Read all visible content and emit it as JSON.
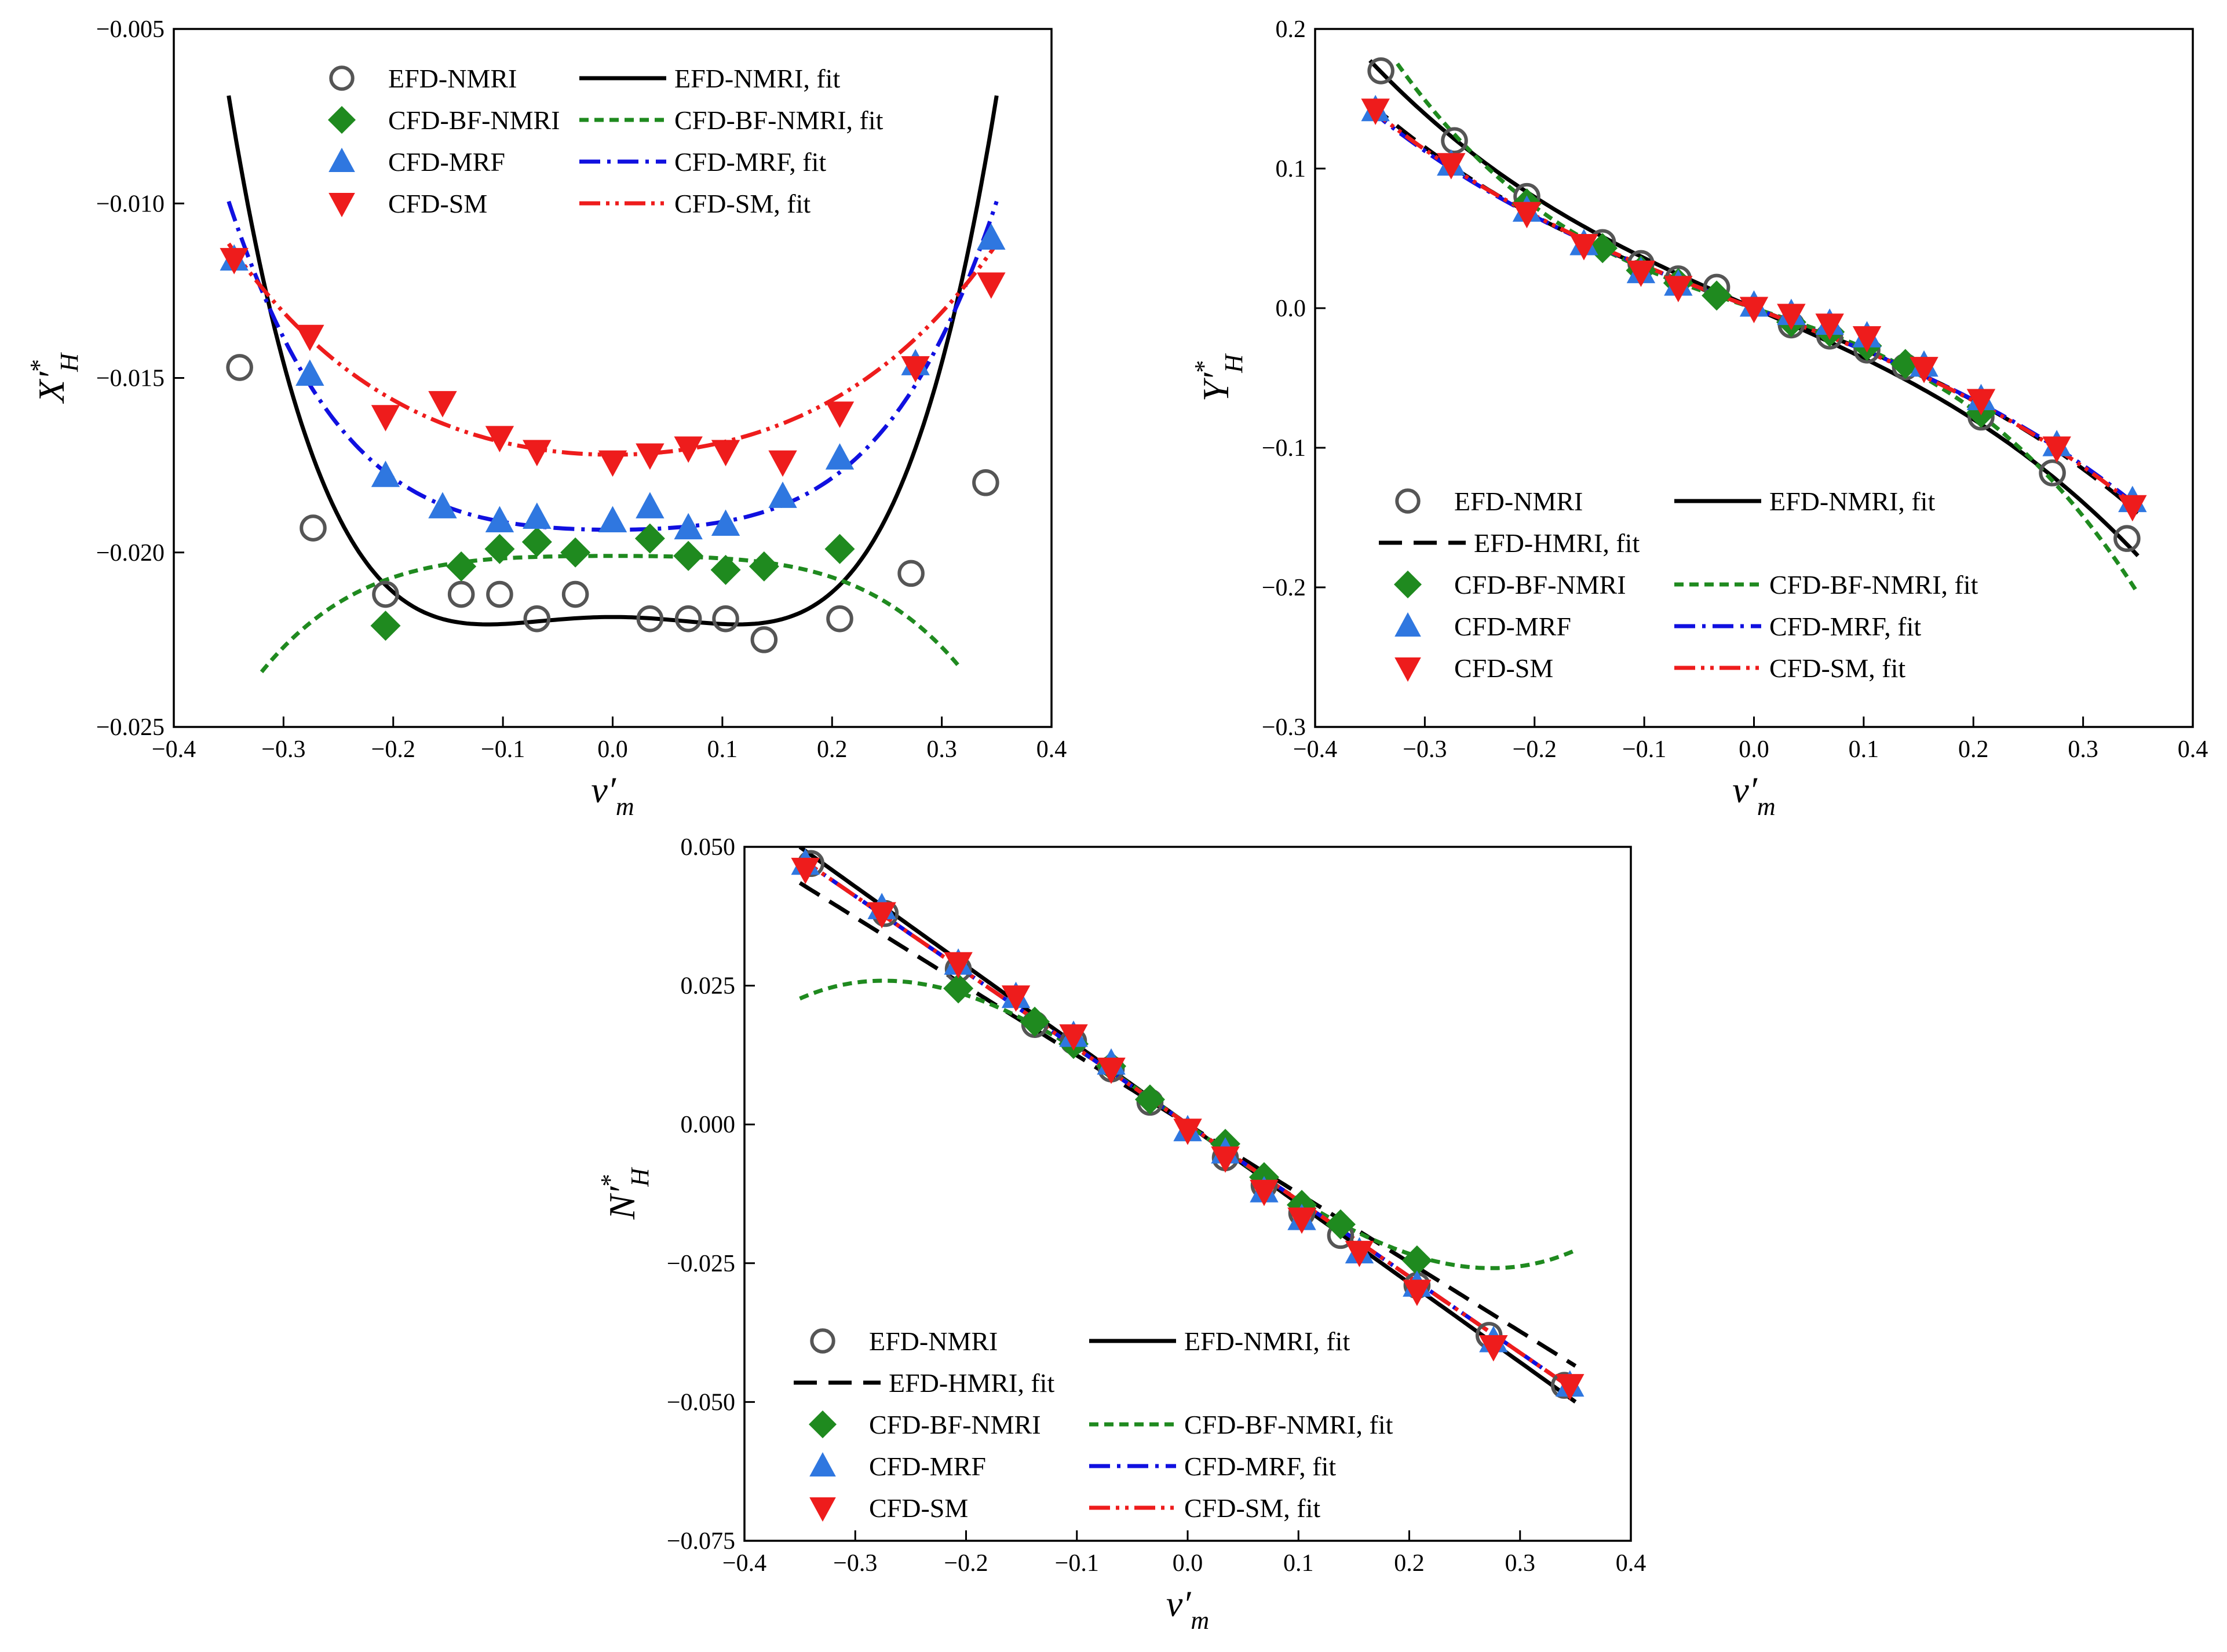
{
  "chart_data": [
    {
      "type": "scatter",
      "ylabel": {
        "main": "X′",
        "sup": "*",
        "sub": "H"
      },
      "xlabel": {
        "main": "v′",
        "sub": "m"
      },
      "xlim": [
        -0.4,
        0.4
      ],
      "ylim": [
        -0.025,
        -0.005
      ],
      "xticks": [
        -0.4,
        -0.3,
        -0.2,
        -0.1,
        0.0,
        0.1,
        0.2,
        0.3,
        0.4
      ],
      "xtick_labels": [
        "−0.4",
        "−0.3",
        "−0.2",
        "−0.1",
        "0.0",
        "0.1",
        "0.2",
        "0.3",
        "0.4"
      ],
      "yticks": [
        -0.025,
        -0.02,
        -0.015,
        -0.01,
        -0.005
      ],
      "ytick_labels": [
        "−0.025",
        "−0.020",
        "−0.015",
        "−0.010",
        "−0.005"
      ],
      "legend_position": "top-center",
      "legend_columns": 2,
      "legend": [
        {
          "label": "EFD-NMRI",
          "kind": "marker",
          "series": "efd"
        },
        {
          "label": "EFD-NMRI, fit",
          "kind": "line",
          "fit": "efd"
        },
        {
          "label": "CFD-BF-NMRI",
          "kind": "marker",
          "series": "bf"
        },
        {
          "label": "CFD-BF-NMRI, fit",
          "kind": "line",
          "fit": "bf"
        },
        {
          "label": "CFD-MRF",
          "kind": "marker",
          "series": "mrf"
        },
        {
          "label": "CFD-MRF, fit",
          "kind": "line",
          "fit": "mrf"
        },
        {
          "label": "CFD-SM",
          "kind": "marker",
          "series": "sm"
        },
        {
          "label": "CFD-SM, fit",
          "kind": "line",
          "fit": "sm"
        }
      ],
      "series": [
        {
          "key": "efd",
          "marker": "circle",
          "color": "#555555",
          "x": [
            -0.34,
            -0.273,
            -0.207,
            -0.138,
            -0.103,
            -0.069,
            -0.034,
            0.034,
            0.069,
            0.103,
            0.138,
            0.207,
            0.272,
            0.34
          ],
          "y": [
            -0.0147,
            -0.0193,
            -0.0212,
            -0.0212,
            -0.0212,
            -0.0219,
            -0.0212,
            -0.0219,
            -0.0219,
            -0.0219,
            -0.0225,
            -0.0219,
            -0.0206,
            -0.018
          ]
        },
        {
          "key": "bf",
          "marker": "diamond",
          "color": "#1f8a1f",
          "x": [
            -0.207,
            -0.138,
            -0.103,
            -0.069,
            -0.034,
            0.034,
            0.069,
            0.103,
            0.138,
            0.207
          ],
          "y": [
            -0.0221,
            -0.0204,
            -0.0199,
            -0.0197,
            -0.02,
            -0.0196,
            -0.0201,
            -0.0205,
            -0.0204,
            -0.0199
          ]
        },
        {
          "key": "mrf",
          "marker": "triangle-up",
          "color": "#2f77e0",
          "x": [
            -0.345,
            -0.276,
            -0.207,
            -0.155,
            -0.103,
            -0.069,
            0.0,
            0.034,
            0.069,
            0.103,
            0.155,
            0.207,
            0.276,
            0.345
          ],
          "y": [
            -0.0116,
            -0.0149,
            -0.0178,
            -0.0187,
            -0.0191,
            -0.019,
            -0.0191,
            -0.0187,
            -0.0193,
            -0.0192,
            -0.0184,
            -0.0173,
            -0.0146,
            -0.011
          ]
        },
        {
          "key": "sm",
          "marker": "triangle-down",
          "color": "#ee1c1c",
          "x": [
            -0.345,
            -0.276,
            -0.207,
            -0.155,
            -0.103,
            -0.069,
            0.0,
            0.034,
            0.069,
            0.103,
            0.155,
            0.207,
            0.276,
            0.345
          ],
          "y": [
            -0.0116,
            -0.0138,
            -0.0161,
            -0.0157,
            -0.0167,
            -0.0171,
            -0.0174,
            -0.0172,
            -0.017,
            -0.0171,
            -0.0174,
            -0.016,
            -0.0147,
            -0.0123
          ]
        }
      ],
      "fits": [
        {
          "key": "efd",
          "style": "solid",
          "color": "#000000",
          "x_range": [
            -0.35,
            0.35
          ],
          "coefs": [
            -0.02185,
            0.0,
            -0.0327,
            0.0,
            1.2625
          ]
        },
        {
          "key": "bf",
          "style": "dash",
          "color": "#1f8a1f",
          "x_range": [
            -0.32,
            0.315
          ],
          "coefs": [
            -0.0201,
            0.0,
            -0.0043,
            0.0,
            -0.275
          ]
        },
        {
          "key": "mrf",
          "style": "dashdot",
          "color": "#1010e0",
          "x_range": [
            -0.35,
            0.35
          ],
          "coefs": [
            -0.01935,
            0.0,
            0.0178,
            0.0,
            0.4817
          ]
        },
        {
          "key": "sm",
          "style": "dashdotdot",
          "color": "#ee1c1c",
          "x_range": [
            -0.35,
            0.35
          ],
          "coefs": [
            -0.0172,
            0.0,
            0.0343,
            0.0,
            0.1229
          ]
        }
      ]
    },
    {
      "type": "scatter",
      "ylabel": {
        "main": "Y′",
        "sup": "*",
        "sub": "H"
      },
      "xlabel": {
        "main": "v′",
        "sub": "m"
      },
      "xlim": [
        -0.4,
        0.4
      ],
      "ylim": [
        -0.3,
        0.2
      ],
      "xticks": [
        -0.4,
        -0.3,
        -0.2,
        -0.1,
        0.0,
        0.1,
        0.2,
        0.3,
        0.4
      ],
      "xtick_labels": [
        "−0.4",
        "−0.3",
        "−0.2",
        "−0.1",
        "0.0",
        "0.1",
        "0.2",
        "0.3",
        "0.4"
      ],
      "yticks": [
        -0.3,
        -0.2,
        -0.1,
        0.0,
        0.1,
        0.2
      ],
      "ytick_labels": [
        "−0.3",
        "−0.2",
        "−0.1",
        "0.0",
        "0.1",
        "0.2"
      ],
      "legend_position": "bottom-left",
      "legend_columns": 2,
      "legend": [
        {
          "label": "EFD-NMRI",
          "kind": "marker",
          "series": "efd"
        },
        {
          "label": "EFD-NMRI, fit",
          "kind": "line",
          "fit": "efd"
        },
        {
          "label": "EFD-HMRI, fit",
          "kind": "line",
          "fit": "hmri"
        },
        {
          "label": "CFD-BF-NMRI",
          "kind": "marker",
          "series": "bf"
        },
        {
          "label": "CFD-BF-NMRI, fit",
          "kind": "line",
          "fit": "bf"
        },
        {
          "label": "CFD-MRF",
          "kind": "marker",
          "series": "mrf"
        },
        {
          "label": "CFD-MRF, fit",
          "kind": "line",
          "fit": "mrf"
        },
        {
          "label": "CFD-SM",
          "kind": "marker",
          "series": "sm"
        },
        {
          "label": "CFD-SM, fit",
          "kind": "line",
          "fit": "sm"
        }
      ],
      "series": [
        {
          "key": "efd",
          "marker": "circle",
          "color": "#555555",
          "x": [
            -0.34,
            -0.273,
            -0.207,
            -0.138,
            -0.103,
            -0.069,
            -0.034,
            0.034,
            0.069,
            0.103,
            0.138,
            0.207,
            0.272,
            0.34
          ],
          "y": [
            0.17,
            0.12,
            0.08,
            0.047,
            0.032,
            0.021,
            0.015,
            -0.012,
            -0.02,
            -0.03,
            -0.042,
            -0.078,
            -0.118,
            -0.165
          ]
        },
        {
          "key": "bf",
          "marker": "diamond",
          "color": "#1f8a1f",
          "x": [
            -0.207,
            -0.138,
            -0.103,
            -0.069,
            -0.034,
            0.034,
            0.069,
            0.103,
            0.138,
            0.207
          ],
          "y": [
            0.075,
            0.043,
            0.027,
            0.018,
            0.009,
            -0.01,
            -0.017,
            -0.027,
            -0.04,
            -0.075
          ]
        },
        {
          "key": "mrf",
          "marker": "triangle-up",
          "color": "#2f77e0",
          "x": [
            -0.345,
            -0.276,
            -0.207,
            -0.155,
            -0.103,
            -0.069,
            0.0,
            0.034,
            0.069,
            0.103,
            0.155,
            0.207,
            0.276,
            0.345
          ],
          "y": [
            0.142,
            0.103,
            0.07,
            0.046,
            0.026,
            0.017,
            0.002,
            -0.004,
            -0.011,
            -0.02,
            -0.041,
            -0.065,
            -0.098,
            -0.138
          ]
        },
        {
          "key": "sm",
          "marker": "triangle-down",
          "color": "#ee1c1c",
          "x": [
            -0.345,
            -0.276,
            -0.207,
            -0.155,
            -0.103,
            -0.069,
            0.0,
            0.034,
            0.069,
            0.103,
            0.155,
            0.207,
            0.276,
            0.345
          ],
          "y": [
            0.142,
            0.103,
            0.068,
            0.045,
            0.026,
            0.015,
            0.0,
            -0.005,
            -0.012,
            -0.021,
            -0.043,
            -0.066,
            -0.1,
            -0.142
          ]
        }
      ],
      "fits": [
        {
          "key": "efd",
          "style": "solid",
          "color": "#000000",
          "x_range": [
            -0.35,
            0.35
          ],
          "coefs": [
            0.0,
            -0.3457,
            0.0,
            -1.3153
          ]
        },
        {
          "key": "hmri",
          "style": "longdash",
          "color": "#000000",
          "x_range": [
            -0.35,
            0.35
          ],
          "coefs": [
            0.0,
            -0.2872,
            0.0,
            -1.078
          ]
        },
        {
          "key": "bf",
          "style": "dash",
          "color": "#1f8a1f",
          "x_range": [
            -0.325,
            0.35
          ],
          "coefs": [
            0.0,
            -0.2566,
            0.0,
            -2.672
          ]
        },
        {
          "key": "mrf",
          "style": "dashdot",
          "color": "#1010e0",
          "x_range": [
            -0.35,
            0.35
          ],
          "coefs": [
            0.0,
            -0.2911,
            0.0,
            -0.9364
          ]
        },
        {
          "key": "sm",
          "style": "dashdotdot",
          "color": "#ee1c1c",
          "x_range": [
            -0.35,
            0.35
          ],
          "coefs": [
            0.0,
            -0.2942,
            0.0,
            -0.9397
          ]
        }
      ]
    },
    {
      "type": "scatter",
      "ylabel": {
        "main": "N′",
        "sup": "*",
        "sub": "H"
      },
      "xlabel": {
        "main": "v′",
        "sub": "m"
      },
      "xlim": [
        -0.4,
        0.4
      ],
      "ylim": [
        -0.075,
        0.05
      ],
      "xticks": [
        -0.4,
        -0.3,
        -0.2,
        -0.1,
        0.0,
        0.1,
        0.2,
        0.3,
        0.4
      ],
      "xtick_labels": [
        "−0.4",
        "−0.3",
        "−0.2",
        "−0.1",
        "0.0",
        "0.1",
        "0.2",
        "0.3",
        "0.4"
      ],
      "yticks": [
        -0.075,
        -0.05,
        -0.025,
        0.0,
        0.025,
        0.05
      ],
      "ytick_labels": [
        "−0.075",
        "−0.050",
        "−0.025",
        "0.000",
        "0.025",
        "0.050"
      ],
      "legend_position": "bottom-left",
      "legend_columns": 2,
      "legend": [
        {
          "label": "EFD-NMRI",
          "kind": "marker",
          "series": "efd"
        },
        {
          "label": "EFD-NMRI, fit",
          "kind": "line",
          "fit": "efd"
        },
        {
          "label": "EFD-HMRI, fit",
          "kind": "line",
          "fit": "hmri"
        },
        {
          "label": "CFD-BF-NMRI",
          "kind": "marker",
          "series": "bf"
        },
        {
          "label": "CFD-BF-NMRI, fit",
          "kind": "line",
          "fit": "bf"
        },
        {
          "label": "CFD-MRF",
          "kind": "marker",
          "series": "mrf"
        },
        {
          "label": "CFD-MRF, fit",
          "kind": "line",
          "fit": "mrf"
        },
        {
          "label": "CFD-SM",
          "kind": "marker",
          "series": "sm"
        },
        {
          "label": "CFD-SM, fit",
          "kind": "line",
          "fit": "sm"
        }
      ],
      "series": [
        {
          "key": "efd",
          "marker": "circle",
          "color": "#555555",
          "x": [
            -0.34,
            -0.273,
            -0.207,
            -0.138,
            -0.103,
            -0.069,
            -0.034,
            0.034,
            0.069,
            0.103,
            0.138,
            0.207,
            0.272,
            0.34
          ],
          "y": [
            0.047,
            0.038,
            0.028,
            0.018,
            0.015,
            0.01,
            0.004,
            -0.006,
            -0.011,
            -0.016,
            -0.02,
            -0.029,
            -0.038,
            -0.047
          ]
        },
        {
          "key": "bf",
          "marker": "diamond",
          "color": "#1f8a1f",
          "x": [
            -0.207,
            -0.138,
            -0.103,
            -0.069,
            -0.034,
            0.034,
            0.069,
            0.103,
            0.138,
            0.207
          ],
          "y": [
            0.0245,
            0.0185,
            0.0145,
            0.0105,
            0.0045,
            -0.0035,
            -0.0095,
            -0.0145,
            -0.018,
            -0.0245
          ]
        },
        {
          "key": "mrf",
          "marker": "triangle-up",
          "color": "#2f77e0",
          "x": [
            -0.345,
            -0.276,
            -0.207,
            -0.155,
            -0.103,
            -0.069,
            0.0,
            0.034,
            0.069,
            0.103,
            0.155,
            0.207,
            0.276,
            0.345
          ],
          "y": [
            0.047,
            0.039,
            0.029,
            0.023,
            0.016,
            0.011,
            -0.001,
            -0.005,
            -0.012,
            -0.017,
            -0.023,
            -0.029,
            -0.039,
            -0.047
          ]
        },
        {
          "key": "sm",
          "marker": "triangle-down",
          "color": "#ee1c1c",
          "x": [
            -0.345,
            -0.276,
            -0.207,
            -0.155,
            -0.103,
            -0.069,
            0.0,
            0.034,
            0.069,
            0.103,
            0.155,
            0.207,
            0.276,
            0.345
          ],
          "y": [
            0.046,
            0.038,
            0.029,
            0.023,
            0.016,
            0.01,
            -0.001,
            -0.006,
            -0.012,
            -0.017,
            -0.023,
            -0.03,
            -0.04,
            -0.047
          ]
        }
      ],
      "fits": [
        {
          "key": "efd",
          "style": "solid",
          "color": "#000000",
          "x_range": [
            -0.35,
            0.35
          ],
          "coefs": [
            0.0,
            -0.1428,
            0.0,
            0.0
          ]
        },
        {
          "key": "hmri",
          "style": "longdash",
          "color": "#000000",
          "x_range": [
            -0.35,
            0.35
          ],
          "coefs": [
            0.0,
            -0.1243,
            0.0,
            0.0
          ]
        },
        {
          "key": "bf",
          "style": "dash",
          "color": "#1f8a1f",
          "x_range": [
            -0.35,
            0.35
          ],
          "coefs": [
            0.0,
            -0.1416,
            0.0,
            0.6274
          ]
        },
        {
          "key": "mrf",
          "style": "dashdot",
          "color": "#1010e0",
          "x_range": [
            -0.35,
            0.35
          ],
          "coefs": [
            0.0,
            -0.1371,
            0.0,
            0.0
          ]
        },
        {
          "key": "sm",
          "style": "dashdotdot",
          "color": "#ee1c1c",
          "x_range": [
            -0.35,
            0.35
          ],
          "coefs": [
            0.0,
            -0.1371,
            0.0,
            0.0
          ]
        }
      ]
    }
  ]
}
